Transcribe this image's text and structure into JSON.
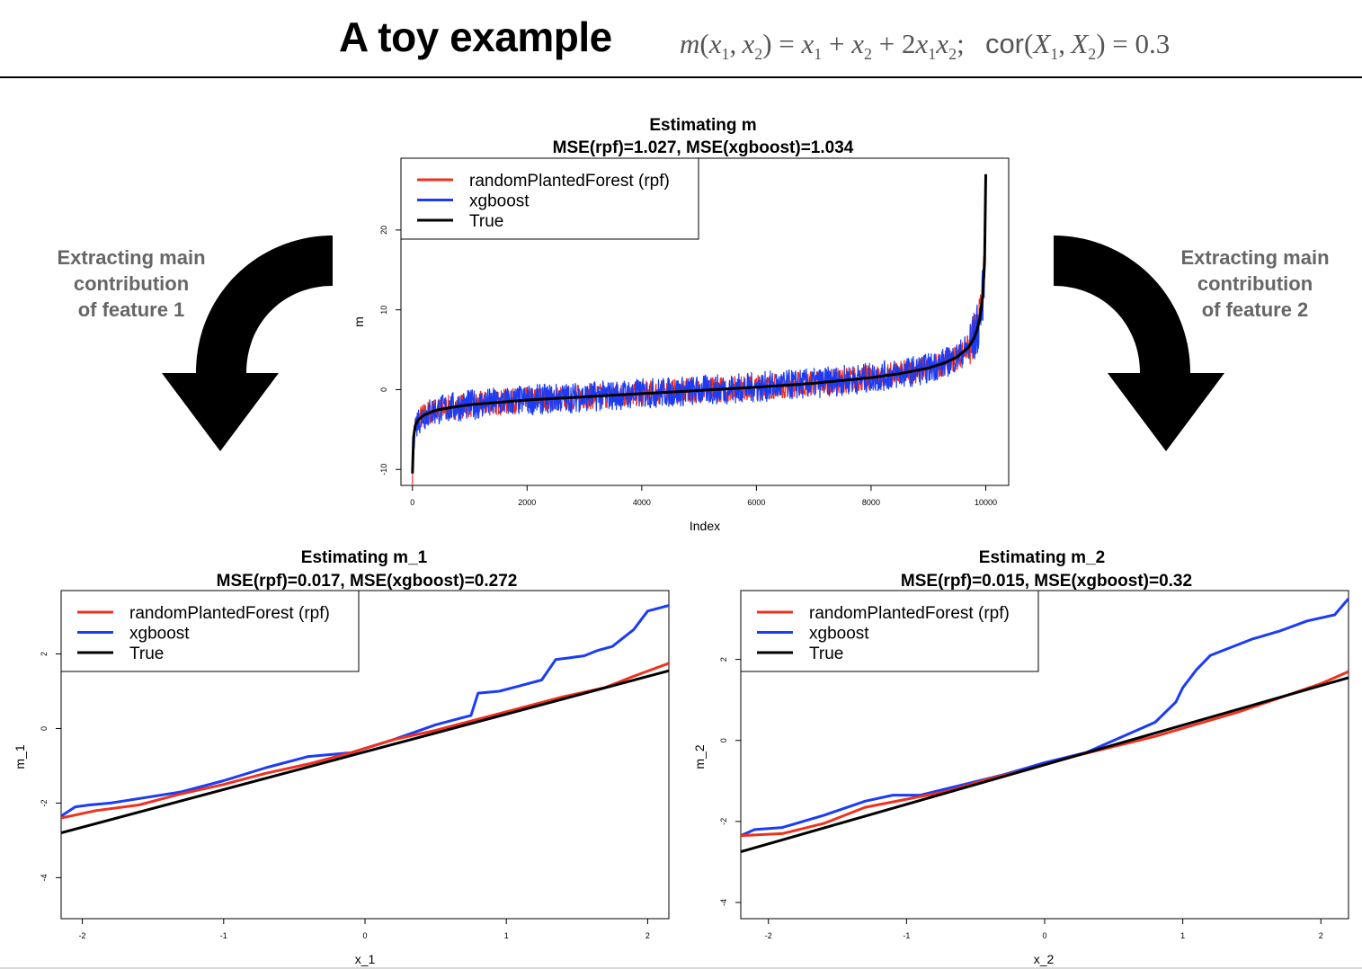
{
  "header": {
    "title": "A toy example",
    "formula": "m(x1, x2) = x1 + x2 + 2x1x2;",
    "formula_parts": {
      "m": "m",
      "x": "x",
      "X": "X",
      "cor": "cor",
      "rhs_const": "2",
      "corr_value": "0.3",
      "one": "1",
      "two": "2"
    }
  },
  "side_labels": {
    "left": [
      "Extracting main",
      "contribution",
      "of feature 1"
    ],
    "right": [
      "Extracting main",
      "contribution",
      "of feature 2"
    ]
  },
  "colors": {
    "rpf": "#f0311e",
    "xgboost": "#1b3cf5",
    "true": "#000000",
    "side_label": "#666666"
  },
  "icons": {
    "left_arrow": "curved-arrow-down-icon",
    "right_arrow": "curved-arrow-down-icon"
  },
  "chart_data": [
    {
      "type": "line",
      "title": "Estimating m",
      "subtitle": "MSE(rpf)=1.027, MSE(xgboost)=1.034",
      "xlabel": "Index",
      "ylabel": "m",
      "xlim": [
        -200,
        10400
      ],
      "ylim": [
        -12,
        29
      ],
      "xticks": [
        0,
        2000,
        4000,
        6000,
        8000,
        10000
      ],
      "yticks": [
        -10,
        0,
        10,
        20
      ],
      "legend": {
        "placement": "top-left",
        "entries": [
          "randomPlantedForest (rpf)",
          "xgboost",
          "True"
        ]
      },
      "grid": false,
      "series": [
        {
          "name": "True",
          "color": "#000000",
          "x": [
            0,
            20,
            50,
            100,
            200,
            400,
            700,
            1000,
            2000,
            3000,
            4000,
            5000,
            6000,
            7000,
            8000,
            8500,
            9000,
            9300,
            9500,
            9700,
            9800,
            9850,
            9900,
            9950,
            9980,
            10000
          ],
          "y": [
            -10.5,
            -6,
            -4.5,
            -3.8,
            -3.2,
            -2.6,
            -2.2,
            -1.9,
            -1.3,
            -0.9,
            -0.5,
            -0.1,
            0.3,
            0.8,
            1.5,
            2,
            2.7,
            3.4,
            4.1,
            5.3,
            6.5,
            7.5,
            9,
            12,
            16,
            27
          ]
        },
        {
          "name": "randomPlantedForest (rpf)",
          "color": "#f0311e",
          "band": true,
          "spread": 1.6
        },
        {
          "name": "xgboost",
          "color": "#1b3cf5",
          "band": true,
          "spread": 1.9
        }
      ]
    },
    {
      "type": "line",
      "title": "Estimating m_1",
      "subtitle": "MSE(rpf)=0.017, MSE(xgboost)=0.272",
      "xlabel": "x_1",
      "ylabel": "m_1",
      "xlim": [
        -2.15,
        2.15
      ],
      "ylim": [
        -5.1,
        3.7
      ],
      "xticks": [
        -2,
        -1,
        0,
        1,
        2
      ],
      "yticks": [
        -4,
        -2,
        0,
        2
      ],
      "legend": {
        "placement": "top-left",
        "entries": [
          "randomPlantedForest (rpf)",
          "xgboost",
          "True"
        ]
      },
      "grid": false,
      "series": [
        {
          "name": "True",
          "color": "#000000",
          "x": [
            -2.15,
            2.15
          ],
          "y": [
            -2.8,
            1.55
          ]
        },
        {
          "name": "randomPlantedForest (rpf)",
          "color": "#f0311e",
          "x": [
            -2.15,
            -1.9,
            -1.6,
            -1.3,
            -1.0,
            -0.7,
            -0.4,
            -0.1,
            0.2,
            0.5,
            0.8,
            1.1,
            1.4,
            1.7,
            1.9,
            2.15
          ],
          "y": [
            -2.4,
            -2.2,
            -2.05,
            -1.75,
            -1.5,
            -1.2,
            -0.95,
            -0.65,
            -0.3,
            -0.05,
            0.25,
            0.55,
            0.85,
            1.1,
            1.4,
            1.75
          ]
        },
        {
          "name": "xgboost",
          "color": "#1b3cf5",
          "x": [
            -2.15,
            -2.05,
            -1.95,
            -1.8,
            -1.55,
            -1.3,
            -1.0,
            -0.7,
            -0.4,
            -0.1,
            0.2,
            0.5,
            0.75,
            0.8,
            0.95,
            1.1,
            1.25,
            1.35,
            1.45,
            1.55,
            1.65,
            1.75,
            1.9,
            2.0,
            2.15
          ],
          "y": [
            -2.35,
            -2.1,
            -2.05,
            -2.0,
            -1.85,
            -1.7,
            -1.4,
            -1.05,
            -0.75,
            -0.65,
            -0.3,
            0.1,
            0.35,
            0.95,
            1.0,
            1.15,
            1.3,
            1.85,
            1.9,
            1.95,
            2.1,
            2.2,
            2.65,
            3.15,
            3.3
          ]
        }
      ]
    },
    {
      "type": "line",
      "title": "Estimating m_2",
      "subtitle": "MSE(rpf)=0.015, MSE(xgboost)=0.32",
      "xlabel": "x_2",
      "ylabel": "m_2",
      "xlim": [
        -2.2,
        2.2
      ],
      "ylim": [
        -4.4,
        3.7
      ],
      "xticks": [
        -2,
        -1,
        0,
        1,
        2
      ],
      "yticks": [
        -4,
        -2,
        0,
        2
      ],
      "legend": {
        "placement": "top-left",
        "entries": [
          "randomPlantedForest (rpf)",
          "xgboost",
          "True"
        ]
      },
      "grid": false,
      "series": [
        {
          "name": "True",
          "color": "#000000",
          "x": [
            -2.2,
            2.2
          ],
          "y": [
            -2.75,
            1.55
          ]
        },
        {
          "name": "randomPlantedForest (rpf)",
          "color": "#f0311e",
          "x": [
            -2.2,
            -1.9,
            -1.6,
            -1.3,
            -1.0,
            -0.7,
            -0.4,
            -0.1,
            0.2,
            0.5,
            0.8,
            1.1,
            1.4,
            1.7,
            2.0,
            2.2
          ],
          "y": [
            -2.35,
            -2.3,
            -2.05,
            -1.65,
            -1.45,
            -1.25,
            -0.95,
            -0.7,
            -0.4,
            -0.15,
            0.1,
            0.4,
            0.7,
            1.05,
            1.4,
            1.7
          ]
        },
        {
          "name": "xgboost",
          "color": "#1b3cf5",
          "x": [
            -2.2,
            -2.1,
            -1.9,
            -1.6,
            -1.3,
            -1.1,
            -0.9,
            -0.6,
            -0.3,
            0.0,
            0.3,
            0.6,
            0.8,
            0.95,
            1.0,
            1.1,
            1.2,
            1.35,
            1.5,
            1.7,
            1.9,
            2.1,
            2.2
          ],
          "y": [
            -2.35,
            -2.2,
            -2.15,
            -1.85,
            -1.5,
            -1.35,
            -1.35,
            -1.1,
            -0.85,
            -0.55,
            -0.3,
            0.15,
            0.45,
            0.95,
            1.3,
            1.75,
            2.1,
            2.3,
            2.5,
            2.7,
            2.95,
            3.1,
            3.5
          ]
        }
      ]
    }
  ]
}
